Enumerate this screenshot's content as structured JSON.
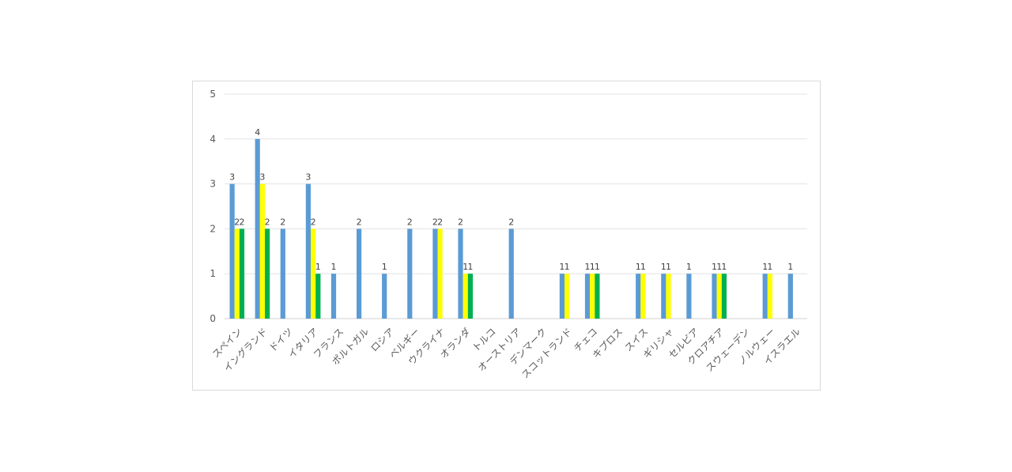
{
  "chart_data": {
    "type": "bar",
    "title": "",
    "xlabel": "",
    "ylabel": "",
    "ylim": [
      0,
      5
    ],
    "y_ticks": [
      "0",
      "1",
      "2",
      "3",
      "4",
      "5"
    ],
    "grid": true,
    "legend": "none",
    "categories": [
      "スペイン",
      "イングランド",
      "ドイツ",
      "イタリア",
      "フランス",
      "ポルトガル",
      "ロシア",
      "ベルギー",
      "ウクライナ",
      "オランダ",
      "トルコ",
      "オーストリア",
      "デンマーク",
      "スコットランド",
      "チェコ",
      "キプロス",
      "スイス",
      "ギリシャ",
      "セルビア",
      "クロアチア",
      "スウェーデン",
      "ノルウェー",
      "イスラエル"
    ],
    "series": [
      {
        "color": "#5b9bd5",
        "values": [
          3,
          4,
          2,
          3,
          1,
          2,
          1,
          2,
          2,
          2,
          0,
          2,
          0,
          1,
          1,
          0,
          1,
          1,
          1,
          1,
          0,
          1,
          1
        ]
      },
      {
        "color": "#ffff00",
        "values": [
          2,
          3,
          0,
          2,
          0,
          0,
          0,
          0,
          2,
          1,
          0,
          0,
          0,
          1,
          1,
          0,
          1,
          1,
          0,
          1,
          0,
          1,
          0
        ]
      },
      {
        "color": "#00b050",
        "values": [
          2,
          2,
          0,
          1,
          0,
          0,
          0,
          0,
          0,
          1,
          0,
          0,
          0,
          0,
          1,
          0,
          0,
          0,
          0,
          1,
          0,
          0,
          0
        ]
      }
    ]
  }
}
